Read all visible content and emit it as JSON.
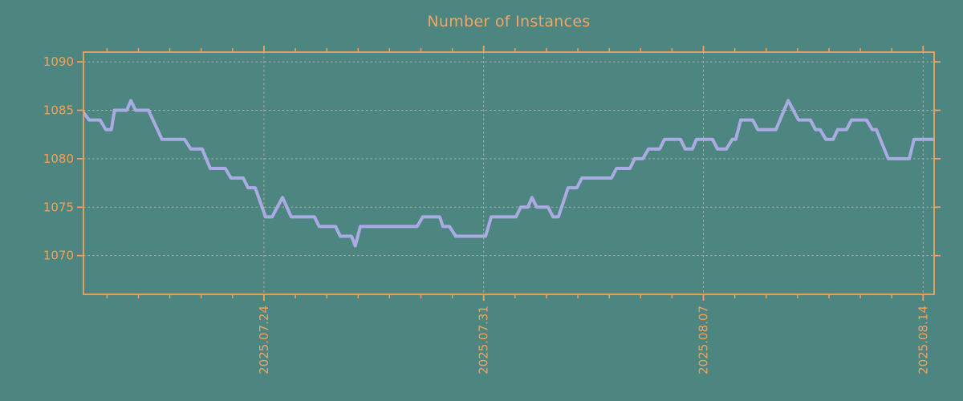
{
  "page": {
    "background_color": "#4d8580"
  },
  "chart_data": {
    "type": "line",
    "title": "Number of Instances",
    "xlabel": "",
    "ylabel": "",
    "legend": "none",
    "grid": "dotted",
    "title_color": "#f2a660",
    "axis_color": "#f0a25c",
    "grid_color": "#abb0a8",
    "ylim": [
      1066,
      1091
    ],
    "xlim_days": [
      -5.75,
      21.35
    ],
    "y_ticks": [
      {
        "value": 1070,
        "label": "1070"
      },
      {
        "value": 1075,
        "label": "1075"
      },
      {
        "value": 1080,
        "label": "1080"
      },
      {
        "value": 1085,
        "label": "1085"
      },
      {
        "value": 1090,
        "label": "1090"
      }
    ],
    "x_ticks": [
      {
        "day": 0,
        "label": "2025.07.24"
      },
      {
        "day": 7,
        "label": "2025.07.31"
      },
      {
        "day": 14,
        "label": "2025.08.07"
      },
      {
        "day": 21,
        "label": "2025.08.14"
      }
    ],
    "x_minor_tick_every_days": 1,
    "series": [
      {
        "name": "Number of Instances",
        "color": "#a9abe2",
        "points": [
          [
            -5.8,
            1085
          ],
          [
            -5.57,
            1084
          ],
          [
            -5.22,
            1084
          ],
          [
            -5.04,
            1083
          ],
          [
            -4.86,
            1083
          ],
          [
            -4.76,
            1085
          ],
          [
            -4.37,
            1085
          ],
          [
            -4.24,
            1086
          ],
          [
            -4.09,
            1085
          ],
          [
            -3.68,
            1085
          ],
          [
            -3.25,
            1082
          ],
          [
            -2.53,
            1082
          ],
          [
            -2.33,
            1081
          ],
          [
            -1.97,
            1081
          ],
          [
            -1.71,
            1079
          ],
          [
            -1.23,
            1079
          ],
          [
            -1.05,
            1078
          ],
          [
            -0.66,
            1078
          ],
          [
            -0.51,
            1077
          ],
          [
            -0.28,
            1077
          ],
          [
            0.05,
            1074
          ],
          [
            0.26,
            1074
          ],
          [
            0.59,
            1076
          ],
          [
            0.87,
            1074
          ],
          [
            1.61,
            1074
          ],
          [
            1.76,
            1073
          ],
          [
            2.28,
            1073
          ],
          [
            2.43,
            1072
          ],
          [
            2.79,
            1072
          ],
          [
            2.91,
            1071
          ],
          [
            3.07,
            1073
          ],
          [
            4.88,
            1073
          ],
          [
            5.06,
            1074
          ],
          [
            5.6,
            1074
          ],
          [
            5.7,
            1073
          ],
          [
            5.91,
            1073
          ],
          [
            6.11,
            1072
          ],
          [
            7.06,
            1072
          ],
          [
            7.24,
            1074
          ],
          [
            8.03,
            1074
          ],
          [
            8.18,
            1075
          ],
          [
            8.41,
            1075
          ],
          [
            8.54,
            1076
          ],
          [
            8.69,
            1075
          ],
          [
            9.05,
            1075
          ],
          [
            9.21,
            1074
          ],
          [
            9.38,
            1074
          ],
          [
            9.69,
            1077
          ],
          [
            9.97,
            1077
          ],
          [
            10.13,
            1078
          ],
          [
            11.07,
            1078
          ],
          [
            11.23,
            1079
          ],
          [
            11.66,
            1079
          ],
          [
            11.81,
            1080
          ],
          [
            12.07,
            1080
          ],
          [
            12.25,
            1081
          ],
          [
            12.61,
            1081
          ],
          [
            12.76,
            1082
          ],
          [
            13.27,
            1082
          ],
          [
            13.42,
            1081
          ],
          [
            13.65,
            1081
          ],
          [
            13.78,
            1082
          ],
          [
            14.29,
            1082
          ],
          [
            14.45,
            1081
          ],
          [
            14.73,
            1081
          ],
          [
            14.92,
            1082
          ],
          [
            15.03,
            1082
          ],
          [
            15.19,
            1084
          ],
          [
            15.57,
            1084
          ],
          [
            15.73,
            1083
          ],
          [
            16.31,
            1083
          ],
          [
            16.7,
            1086
          ],
          [
            17.03,
            1084
          ],
          [
            17.41,
            1084
          ],
          [
            17.57,
            1083
          ],
          [
            17.72,
            1083
          ],
          [
            17.9,
            1082
          ],
          [
            18.13,
            1082
          ],
          [
            18.28,
            1083
          ],
          [
            18.56,
            1083
          ],
          [
            18.72,
            1084
          ],
          [
            19.2,
            1084
          ],
          [
            19.38,
            1083
          ],
          [
            19.51,
            1083
          ],
          [
            19.89,
            1080
          ],
          [
            20.56,
            1080
          ],
          [
            20.71,
            1082
          ],
          [
            21.35,
            1082
          ]
        ]
      }
    ]
  }
}
